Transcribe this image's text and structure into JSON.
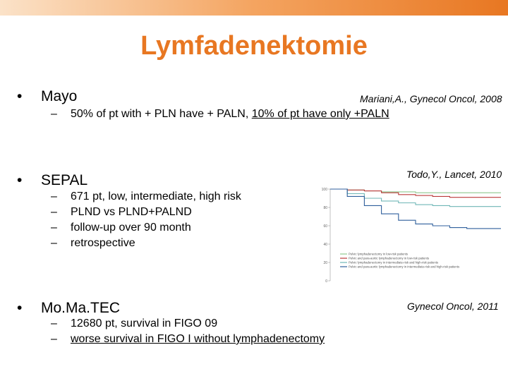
{
  "slide": {
    "title": "Lymfadenektomie",
    "accent_color": "#e87722",
    "bullets": [
      {
        "marker": "•",
        "label": "Mayo",
        "reference": "Mariani,A., Gynecol Oncol, 2008",
        "subs": [
          {
            "marker": "–",
            "text_plain": "50% of pt with + PLN have + PALN, ",
            "text_underlined": "10% of pt have only +PALN"
          }
        ]
      },
      {
        "marker": "•",
        "label": "SEPAL",
        "reference": "Todo,Y., Lancet, 2010",
        "subs": [
          {
            "marker": "–",
            "text": "671 pt, low, intermediate, high risk"
          },
          {
            "marker": "–",
            "text": "PLND vs PLND+PALND"
          },
          {
            "marker": "–",
            "text": "follow-up over 90 month"
          },
          {
            "marker": "–",
            "text": "retrospective"
          }
        ]
      },
      {
        "marker": "•",
        "label": "Mo.Ma.TEC",
        "reference": "Gynecol Oncol, 2011",
        "subs": [
          {
            "marker": "–",
            "text": "12680 pt, survival in FIGO 09"
          },
          {
            "marker": "–",
            "text": "worse survival in FIGO I without lymphadenectomy"
          }
        ]
      }
    ]
  },
  "chart_data": {
    "type": "line",
    "title": "",
    "xlabel": "",
    "ylabel": "",
    "ylim": [
      0,
      100
    ],
    "yticks": [
      "100",
      "80",
      "60",
      "40",
      "20",
      "0"
    ],
    "legend_position": "bottom",
    "x": [
      0,
      10,
      20,
      30,
      40,
      50,
      60,
      70,
      80,
      90,
      100
    ],
    "series": [
      {
        "name": "Pelvic lymphadenectomy in low-risk patients",
        "color": "#8fc98f",
        "values": [
          100,
          99,
          98,
          97,
          97,
          96,
          96,
          96,
          96,
          96,
          96
        ]
      },
      {
        "name": "Pelvic and para-aortic lymphadenectomy in low-risk patients",
        "color": "#bb3a3a",
        "values": [
          100,
          99,
          98,
          96,
          94,
          93,
          92,
          91,
          91,
          91,
          91
        ]
      },
      {
        "name": "Pelvic lymphadenectomy in intermediate-risk and high-risk patients",
        "color": "#6fb6b6",
        "values": [
          100,
          95,
          90,
          87,
          85,
          83,
          82,
          81,
          81,
          81,
          81
        ]
      },
      {
        "name": "Pelvic and para-aortic lymphadenectomy in intermediate-risk and high-risk patients",
        "color": "#2f5f9c",
        "values": [
          100,
          92,
          82,
          73,
          66,
          62,
          60,
          58,
          57,
          57,
          57
        ]
      }
    ]
  }
}
